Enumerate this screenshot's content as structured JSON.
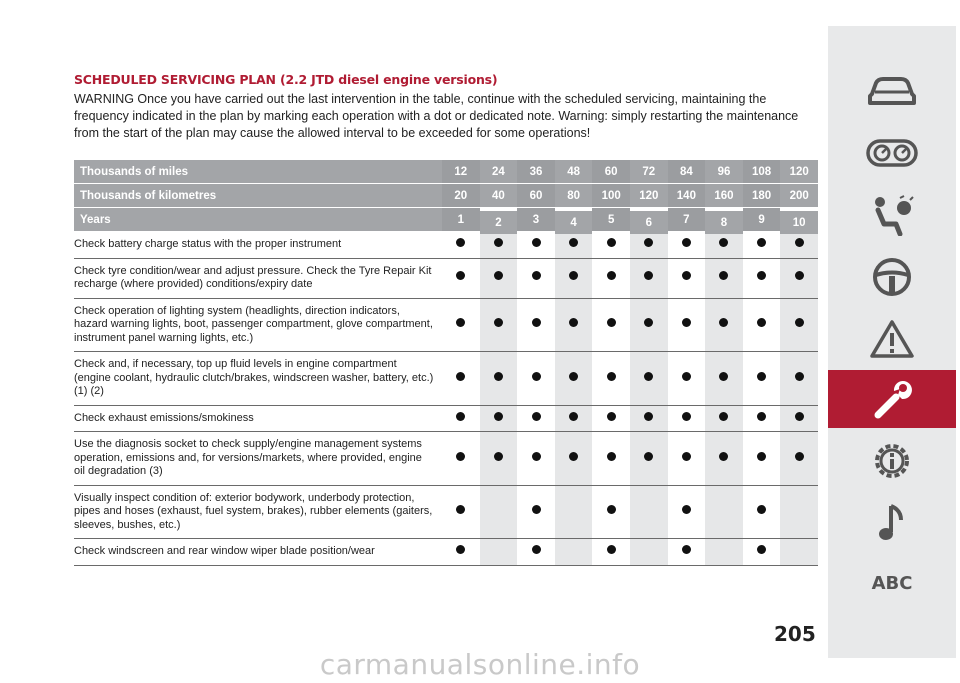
{
  "heading": "SCHEDULED SERVICING PLAN (2.2 JTD diesel engine versions)",
  "warning": "WARNING Once you have carried out the last intervention in the table, continue with the scheduled servicing, maintaining the frequency indicated in the plan by marking each operation with a dot or dedicated note. Warning: simply restarting the maintenance from the start of the plan may cause the allowed interval to be exceeded for some operations!",
  "table": {
    "header_rows": [
      {
        "label": "Thousands of miles",
        "values": [
          "12",
          "24",
          "36",
          "48",
          "60",
          "72",
          "84",
          "96",
          "108",
          "120"
        ]
      },
      {
        "label": "Thousands of kilometres",
        "values": [
          "20",
          "40",
          "60",
          "80",
          "100",
          "120",
          "140",
          "160",
          "180",
          "200"
        ]
      },
      {
        "label": "Years",
        "values": [
          "1",
          "2",
          "3",
          "4",
          "5",
          "6",
          "7",
          "8",
          "9",
          "10"
        ]
      }
    ],
    "rows": [
      {
        "text": "Check battery charge status with the proper instrument",
        "marks": [
          1,
          1,
          1,
          1,
          1,
          1,
          1,
          1,
          1,
          1
        ]
      },
      {
        "text": "Check tyre condition/wear and adjust pressure. Check the Tyre Repair Kit recharge (where provided) conditions/expiry date",
        "marks": [
          1,
          1,
          1,
          1,
          1,
          1,
          1,
          1,
          1,
          1
        ]
      },
      {
        "text": "Check operation of lighting system (headlights, direction indicators, hazard warning lights, boot, passenger compartment, glove compartment, instrument panel warning lights, etc.)",
        "marks": [
          1,
          1,
          1,
          1,
          1,
          1,
          1,
          1,
          1,
          1
        ]
      },
      {
        "text": "Check and, if necessary, top up fluid levels in engine compartment (engine coolant, hydraulic clutch/brakes, windscreen washer, battery, etc.) (1) (2)",
        "marks": [
          1,
          1,
          1,
          1,
          1,
          1,
          1,
          1,
          1,
          1
        ]
      },
      {
        "text": "Check exhaust emissions/smokiness",
        "marks": [
          1,
          1,
          1,
          1,
          1,
          1,
          1,
          1,
          1,
          1
        ]
      },
      {
        "text": "Use the diagnosis socket to check supply/engine management systems operation, emissions and, for versions/markets, where provided, engine oil degradation (3)",
        "marks": [
          1,
          1,
          1,
          1,
          1,
          1,
          1,
          1,
          1,
          1
        ]
      },
      {
        "text": "Visually inspect condition of: exterior bodywork, underbody protection, pipes and hoses (exhaust, fuel system, brakes), rubber elements (gaiters, sleeves, bushes, etc.)",
        "marks": [
          1,
          0,
          1,
          0,
          1,
          0,
          1,
          0,
          1,
          0
        ]
      },
      {
        "text": "Check windscreen and rear window wiper blade position/wear",
        "marks": [
          1,
          0,
          1,
          0,
          1,
          0,
          1,
          0,
          1,
          0
        ]
      }
    ]
  },
  "sidebar": {
    "items": [
      {
        "icon": "car-icon"
      },
      {
        "icon": "dashboard-gauges-icon"
      },
      {
        "icon": "airbag-seat-icon"
      },
      {
        "icon": "steering-wheel-icon"
      },
      {
        "icon": "warning-triangle-icon"
      },
      {
        "icon": "wrench-icon",
        "active": true
      },
      {
        "icon": "technical-data-gear-icon"
      },
      {
        "icon": "music-note-icon"
      },
      {
        "icon": "abc-index-icon",
        "label": "ABC"
      }
    ],
    "active_color": "#b01c33"
  },
  "page_number": "205",
  "watermark": "carmanualsonline.info"
}
